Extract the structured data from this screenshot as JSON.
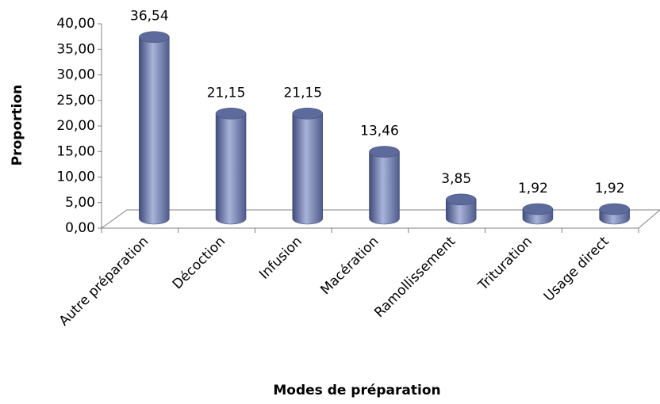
{
  "chart_data": {
    "type": "bar",
    "categories": [
      "Autre préparation",
      "Décoction",
      "Infusion",
      "Macération",
      "Ramollissement",
      "Trituration",
      "Usage direct"
    ],
    "values": [
      36.54,
      21.15,
      21.15,
      13.46,
      3.85,
      1.92,
      1.92
    ],
    "value_labels": [
      "36,54",
      "21,15",
      "21,15",
      "13,46",
      "3,85",
      "1,92",
      "1,92"
    ],
    "color": "#7b87b8",
    "x_label": "Modes de préparation",
    "y_label": "Proportion",
    "ylim": [
      0,
      40
    ],
    "yticks": [
      {
        "value": 0,
        "label": "0,00"
      },
      {
        "value": 5,
        "label": "5,00"
      },
      {
        "value": 10,
        "label": "10,00"
      },
      {
        "value": 15,
        "label": "15,00"
      },
      {
        "value": 20,
        "label": "20,00"
      },
      {
        "value": 25,
        "label": "25,00"
      },
      {
        "value": 30,
        "label": "30,00"
      },
      {
        "value": 35,
        "label": "35,00"
      },
      {
        "value": 40,
        "label": "40,00"
      }
    ],
    "grid": false
  }
}
